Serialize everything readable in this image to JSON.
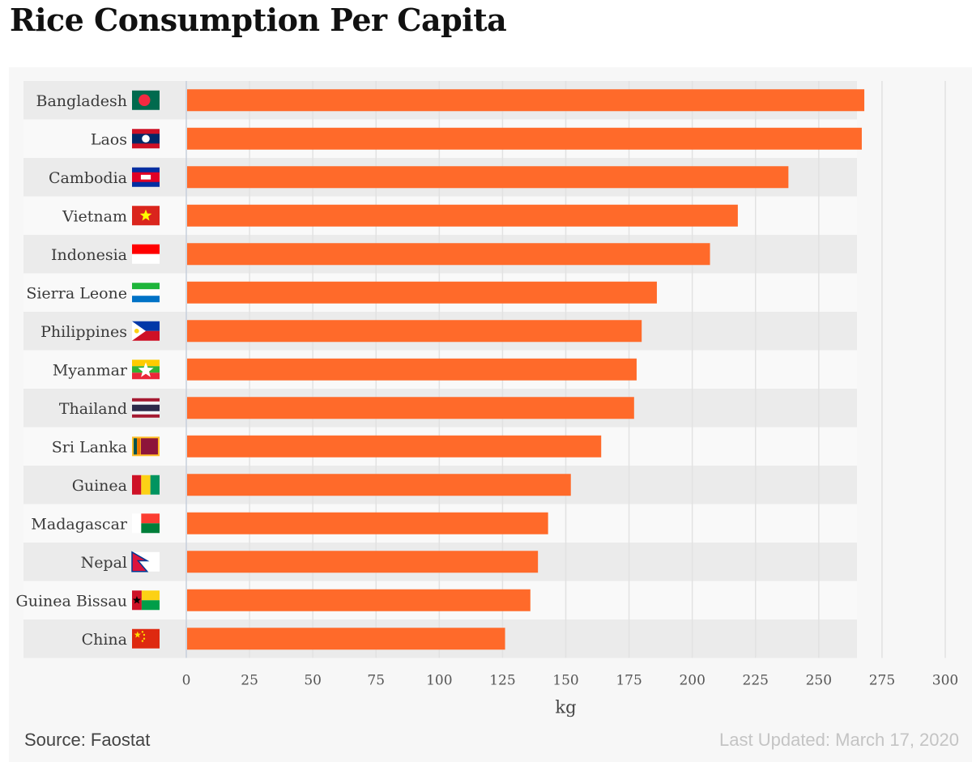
{
  "chart_data": {
    "type": "bar",
    "orientation": "horizontal",
    "title": "Rice Consumption Per Capita",
    "xlabel": "kg",
    "ylabel": "",
    "xlim": [
      0,
      300
    ],
    "x_ticks": [
      0,
      25,
      50,
      75,
      100,
      125,
      150,
      175,
      200,
      225,
      250,
      275,
      300
    ],
    "grid": true,
    "bar_color": "#ff6a2a",
    "categories": [
      "Bangladesh",
      "Laos",
      "Cambodia",
      "Vietnam",
      "Indonesia",
      "Sierra Leone",
      "Philippines",
      "Myanmar",
      "Thailand",
      "Sri Lanka",
      "Guinea",
      "Madagascar",
      "Nepal",
      "Guinea Bissau",
      "China"
    ],
    "values": [
      268,
      267,
      238,
      218,
      207,
      186,
      180,
      178,
      177,
      164,
      152,
      143,
      139,
      136,
      126
    ],
    "flag_icons": [
      "flag-bangladesh-icon",
      "flag-laos-icon",
      "flag-cambodia-icon",
      "flag-vietnam-icon",
      "flag-indonesia-icon",
      "flag-sierra-leone-icon",
      "flag-philippines-icon",
      "flag-myanmar-icon",
      "flag-thailand-icon",
      "flag-sri-lanka-icon",
      "flag-guinea-icon",
      "flag-madagascar-icon",
      "flag-nepal-icon",
      "flag-guinea-bissau-icon",
      "flag-china-icon"
    ]
  },
  "footer": {
    "source": "Source: Faostat",
    "updated": "Last Updated: March 17, 2020"
  }
}
